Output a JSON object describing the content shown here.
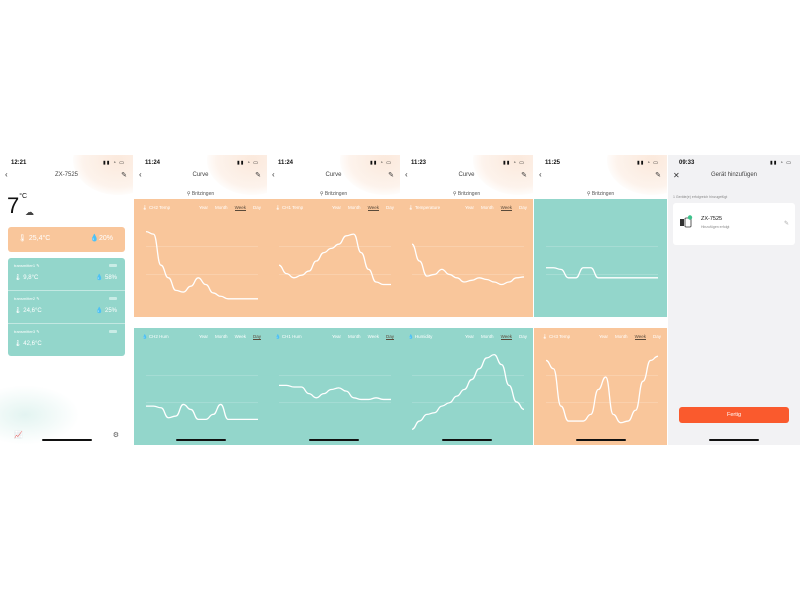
{
  "phones": [
    {
      "time": "12:21",
      "title": "ZX-7525",
      "big_temp": "7",
      "big_temp_unit": "°C",
      "summary": {
        "temp": "25,4°C",
        "humidity": "20%"
      },
      "transmitters": [
        {
          "name": "transmitter1",
          "temp": "9,8°C",
          "humidity": "58%"
        },
        {
          "name": "transmitter2",
          "temp": "24,6°C",
          "humidity": "25%"
        },
        {
          "name": "transmitter3",
          "temp": "42,6°C",
          "humidity": ""
        }
      ]
    },
    {
      "time": "11:24",
      "title": "Curve",
      "location": "Britzingen",
      "panels": [
        {
          "color": "orange",
          "name": "CH2 Temp",
          "active": "Week",
          "points": [
            15,
            18,
            55,
            70,
            85,
            87,
            80,
            70,
            78,
            88,
            92,
            95,
            95,
            95,
            95,
            95
          ]
        },
        {
          "color": "teal",
          "name": "CH2 Hum",
          "active": "Day",
          "points": [
            70,
            70,
            72,
            84,
            82,
            68,
            74,
            86,
            86,
            80,
            68,
            86,
            86,
            86,
            86,
            86
          ]
        }
      ]
    },
    {
      "time": "11:24",
      "title": "Curve",
      "location": "Britzingen",
      "panels": [
        {
          "color": "orange",
          "name": "CH1 Temp",
          "active": "Week",
          "points": [
            55,
            65,
            70,
            67,
            62,
            50,
            40,
            35,
            30,
            20,
            18,
            40,
            60,
            75,
            78,
            78
          ]
        },
        {
          "color": "teal",
          "name": "CH1 Hum",
          "active": "Day",
          "points": [
            45,
            45,
            47,
            47,
            55,
            60,
            55,
            50,
            48,
            52,
            60,
            62,
            62,
            60,
            62,
            62
          ]
        }
      ]
    },
    {
      "time": "11:23",
      "title": "Curve",
      "location": "Britzingen",
      "panels": [
        {
          "color": "orange",
          "name": "Temperature",
          "active": "Week",
          "points": [
            30,
            50,
            68,
            66,
            60,
            66,
            70,
            75,
            73,
            70,
            72,
            75,
            78,
            75,
            70,
            69
          ]
        },
        {
          "color": "teal",
          "name": "Humidity",
          "active": "Week",
          "points": [
            98,
            88,
            80,
            78,
            70,
            66,
            58,
            50,
            38,
            25,
            12,
            8,
            20,
            45,
            65,
            74
          ]
        }
      ]
    },
    {
      "time": "11:25",
      "title": "",
      "location": "Britzingen",
      "panels": [
        {
          "color": "teal",
          "name": "",
          "active": "",
          "points": [
            58,
            58,
            60,
            70,
            70,
            58,
            58,
            70,
            70,
            70,
            70,
            70,
            70,
            70,
            70,
            70
          ]
        },
        {
          "color": "orange",
          "name": "CH3 Temp",
          "active": "Week",
          "points": [
            15,
            25,
            70,
            88,
            88,
            88,
            80,
            50,
            35,
            80,
            90,
            88,
            75,
            40,
            15,
            10
          ]
        }
      ]
    },
    {
      "time": "09:33",
      "title": "Gerät hinzufügen",
      "info": "1 Geräte(e) erfolgreich hinzugefügt",
      "device_name": "ZX-7525",
      "device_status": "Hinzufügen erfolgt",
      "button": "Fertig"
    }
  ],
  "tabs": [
    "Year",
    "Month",
    "Week",
    "Day"
  ],
  "colors": {
    "orange": "#f9c69b",
    "teal": "#93d6cb",
    "accent": "#fa5a2d"
  },
  "icons": {
    "back": "chevron-left-icon",
    "edit": "pencil-icon",
    "close": "close-icon",
    "location": "location-pin-icon",
    "thermometer": "thermometer-icon",
    "droplet": "droplet-icon",
    "battery": "battery-icon",
    "chart": "chart-icon",
    "settings": "gear-icon",
    "cloud": "cloud-icon"
  }
}
